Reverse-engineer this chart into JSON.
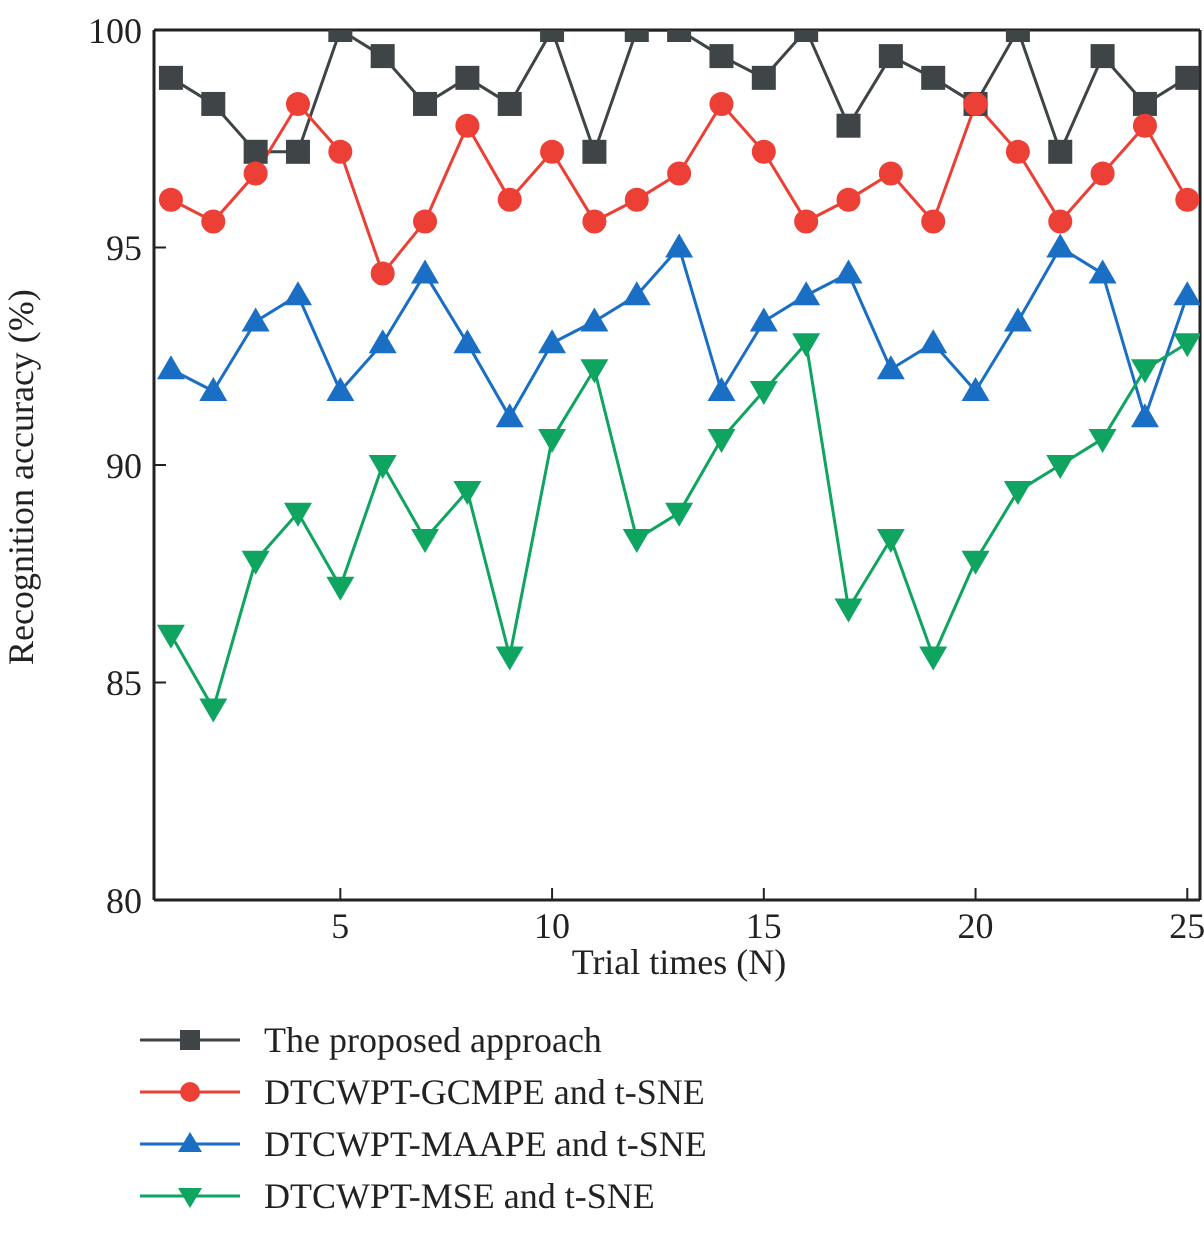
{
  "chart_data": {
    "type": "line",
    "xlabel": "Trial times (N)",
    "ylabel": "Recognition accuracy (%)",
    "x": [
      1,
      2,
      3,
      4,
      5,
      6,
      7,
      8,
      9,
      10,
      11,
      12,
      13,
      14,
      15,
      16,
      17,
      18,
      19,
      20,
      21,
      22,
      23,
      24,
      25
    ],
    "xlim": [
      0.6,
      25.3
    ],
    "xticks": [
      5,
      10,
      15,
      20,
      25
    ],
    "ylim": [
      80,
      100
    ],
    "yticks": [
      80,
      85,
      90,
      95,
      100
    ],
    "grid": false,
    "legend": "bottom",
    "series": [
      {
        "name": "The proposed approach",
        "color": "#3f4446",
        "marker": "square",
        "values": [
          98.9,
          98.3,
          97.2,
          97.2,
          100,
          99.4,
          98.3,
          98.9,
          98.3,
          100,
          97.2,
          100,
          100,
          99.4,
          98.9,
          100,
          97.8,
          99.4,
          98.9,
          98.3,
          100,
          97.2,
          99.4,
          98.3,
          98.9
        ]
      },
      {
        "name": "DTCWPT-GCMPE and t-SNE",
        "color": "#ec3f35",
        "marker": "circle",
        "values": [
          96.1,
          95.6,
          96.7,
          98.3,
          97.2,
          94.4,
          95.6,
          97.8,
          96.1,
          97.2,
          95.6,
          96.1,
          96.7,
          98.3,
          97.2,
          95.6,
          96.1,
          96.7,
          95.6,
          98.3,
          97.2,
          95.6,
          96.7,
          97.8,
          96.1
        ]
      },
      {
        "name": "DTCWPT-MAAPE and t-SNE",
        "color": "#1a6fc4",
        "marker": "triangle",
        "values": [
          92.2,
          91.7,
          93.3,
          93.9,
          91.7,
          92.8,
          94.4,
          92.8,
          91.1,
          92.8,
          93.3,
          93.9,
          95.0,
          91.7,
          93.3,
          93.9,
          94.4,
          92.2,
          92.8,
          91.7,
          93.3,
          95.0,
          94.4,
          91.1,
          93.9
        ]
      },
      {
        "name": "DTCWPT-MSE and t-SNE",
        "color": "#0fa460",
        "marker": "triangle-down",
        "values": [
          86.1,
          84.4,
          87.8,
          88.9,
          87.2,
          90,
          88.3,
          89.4,
          85.6,
          90.6,
          92.2,
          88.3,
          88.9,
          90.6,
          91.7,
          92.8,
          86.7,
          88.3,
          85.6,
          87.8,
          89.4,
          90,
          90.6,
          92.2,
          92.8
        ]
      }
    ]
  }
}
